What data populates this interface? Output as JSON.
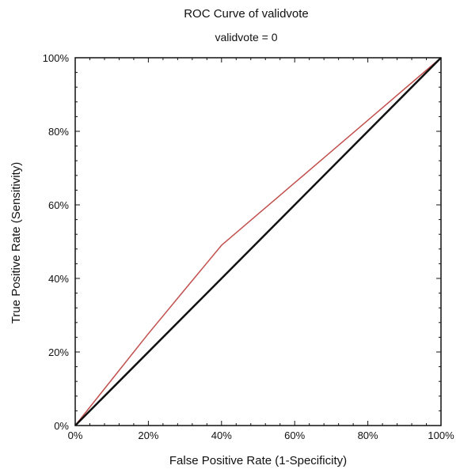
{
  "chart_data": {
    "type": "line",
    "title": "ROC Curve of validvote",
    "subtitle": "validvote = 0",
    "xlabel": "False Positive Rate (1-Specificity)",
    "ylabel": "True Positive Rate (Sensitivity)",
    "xlim": [
      0,
      1
    ],
    "ylim": [
      0,
      1
    ],
    "x_ticks": [
      "0%",
      "20%",
      "40%",
      "60%",
      "80%",
      "100%"
    ],
    "y_ticks": [
      "0%",
      "20%",
      "40%",
      "60%",
      "80%",
      "100%"
    ],
    "grid": false,
    "legend": "none",
    "series": [
      {
        "color": "#c0504d",
        "x": [
          0,
          0.2,
          0.3,
          0.4,
          0.5,
          0.6,
          0.7,
          0.8,
          0.9,
          1.0
        ],
        "y": [
          0,
          0.25,
          0.37,
          0.49,
          0.575,
          0.66,
          0.745,
          0.83,
          0.915,
          1.0
        ]
      },
      {
        "color": "#111111",
        "x": [
          0,
          1
        ],
        "y": [
          0,
          1
        ]
      }
    ]
  }
}
